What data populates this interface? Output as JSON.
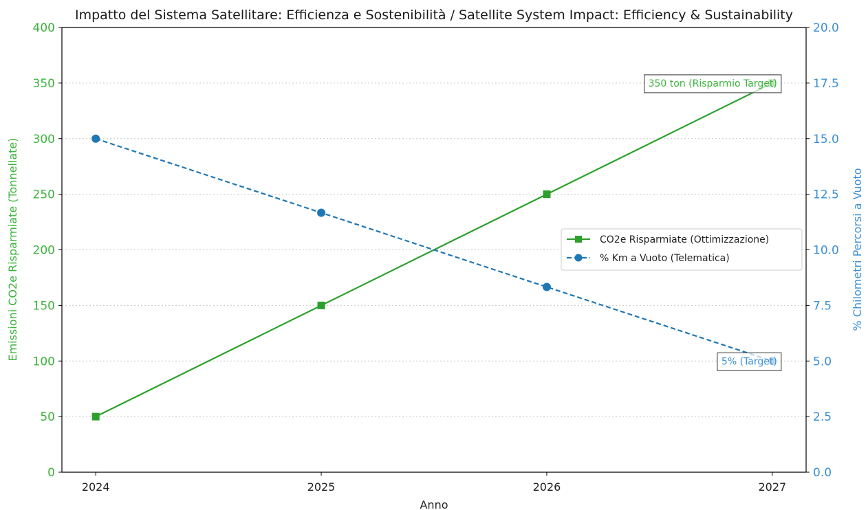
{
  "colors": {
    "co2": "#2ca02c",
    "km": "#1f77b4",
    "left_axis": "#3cb43c",
    "right_axis": "#3b8fd6",
    "grid": "#c8c8c8",
    "axis_line": "#000000"
  },
  "chart_data": {
    "type": "line",
    "title": "Impatto del Sistema Satellitare: Efficienza e Sostenibilità / Satellite System Impact: Efficiency & Sustainability",
    "xlabel": "Anno",
    "ylabel_left": "Emissioni CO2e Risparmiate (Tonnellate)",
    "ylabel_right": "% Chilometri Percorsi a Vuoto",
    "x": [
      2024,
      2025,
      2026,
      2027
    ],
    "x_tick_labels": [
      "2024",
      "2025",
      "2026",
      "2027"
    ],
    "ylim_left": [
      0,
      400
    ],
    "ylim_right": [
      0,
      20
    ],
    "y_ticks_left": [
      "0",
      "50",
      "100",
      "150",
      "200",
      "250",
      "300",
      "350",
      "400"
    ],
    "y_ticks_right": [
      "0.0",
      "2.5",
      "5.0",
      "7.5",
      "10.0",
      "12.5",
      "15.0",
      "17.5",
      "20.0"
    ],
    "grid": "horizontal, dotted",
    "legend_position": "center-right",
    "series": [
      {
        "name": "CO2e Risparmiate (Ottimizzazione)",
        "axis": "left",
        "values": [
          50,
          150,
          250,
          350
        ],
        "color": "#2ca02c",
        "line_style": "solid",
        "marker": "square"
      },
      {
        "name": "% Km a Vuoto (Telematica)",
        "axis": "right",
        "values": [
          15.0,
          11.67,
          8.33,
          5.0
        ],
        "color": "#1f77b4",
        "line_style": "dashed",
        "marker": "circle"
      }
    ],
    "annotations": [
      {
        "text": "350 ton (Risparmio Target)",
        "series": 0,
        "x": 2027,
        "y": 350
      },
      {
        "text": "5% (Target)",
        "series": 1,
        "x": 2027,
        "y": 5.0
      }
    ]
  }
}
